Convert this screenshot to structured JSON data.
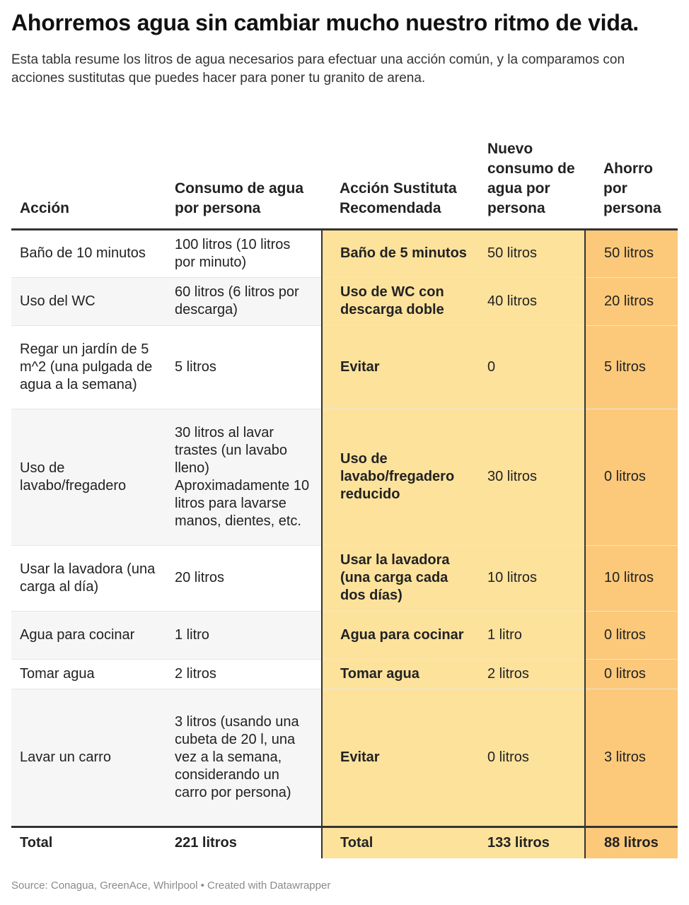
{
  "chart_data": {
    "type": "table",
    "title": "Ahorremos agua sin cambiar mucho nuestro ritmo de vida.",
    "subtitle": "Esta tabla resume los litros de agua necesarios para efectuar una acción común, y la comparamos con acciones sustitutas que puedes hacer para poner tu granito de arena.",
    "columns": [
      "Acción",
      "Consumo de agua por persona",
      "Acción Sustituta Recomendada",
      "Nuevo consumo de agua por persona",
      "Ahorro por persona"
    ],
    "rows": [
      [
        "Baño de 10 minutos",
        "100 litros (10 litros por minuto)",
        "Baño de 5 minutos",
        "50 litros",
        "50 litros"
      ],
      [
        "Uso del WC",
        "60 litros (6 litros por descarga)",
        "Uso de WC con descarga doble",
        "40 litros",
        "20 litros"
      ],
      [
        "Regar un jardín de 5 m^2 (una pulgada de agua a la semana)",
        "5 litros",
        "Evitar",
        "0",
        "5 litros"
      ],
      [
        "Uso de lavabo/fregadero",
        "30 litros al lavar trastes (un lavabo lleno) Aproximadamente 10 litros para lavarse manos, dientes, etc.",
        "Uso de lavabo/fregadero reducido",
        "30 litros",
        "0 litros"
      ],
      [
        "Usar la lavadora (una carga al día)",
        "20 litros",
        "Usar la lavadora (una carga cada dos días)",
        "10 litros",
        "10 litros"
      ],
      [
        "Agua para cocinar",
        "1 litro",
        "Agua para cocinar",
        "1 litro",
        "0 litros"
      ],
      [
        "Tomar agua",
        "2 litros",
        "Tomar agua",
        "2 litros",
        "0 litros"
      ],
      [
        "Lavar un carro",
        "3 litros (usando una cubeta de 20 l, una vez a la semana, considerando un carro por persona)",
        "Evitar",
        "0 litros",
        "3 litros"
      ]
    ],
    "total": [
      "Total",
      "221 litros",
      "Total",
      "133 litros",
      "88 litros"
    ]
  },
  "source": "Source: Conagua, GreenAce, Whirlpool • Created with Datawrapper",
  "colors": {
    "highlight_light": "#fde29c",
    "highlight_dark": "#fcc97a",
    "stripe": "#f6f6f6",
    "rule": "#333333"
  }
}
